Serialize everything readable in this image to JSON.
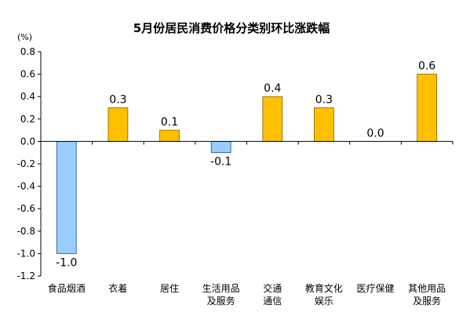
{
  "chart_data": {
    "type": "bar",
    "title": "5月份居民消费价格分类别环比涨跌幅",
    "ylabel": "(%)",
    "xlabel": "",
    "ylim": [
      -1.2,
      0.8
    ],
    "ytick_step": 0.2,
    "y_ticks": [
      "0.8",
      "0.6",
      "0.4",
      "0.2",
      "0.0",
      "-0.2",
      "-0.4",
      "-0.6",
      "-0.8",
      "-1.0",
      "-1.2"
    ],
    "grid": false,
    "legend": "none",
    "categories": [
      [
        "食品烟酒"
      ],
      [
        "衣着"
      ],
      [
        "居住"
      ],
      [
        "生活用品",
        "及服务"
      ],
      [
        "交通",
        "通信"
      ],
      [
        "教育文化",
        "娱乐"
      ],
      [
        "医疗保健"
      ],
      [
        "其他用品",
        "及服务"
      ]
    ],
    "values": [
      -1.0,
      0.3,
      0.1,
      -0.1,
      0.4,
      0.3,
      0.0,
      0.6
    ],
    "value_labels": [
      "-1.0",
      "0.3",
      "0.1",
      "-0.1",
      "0.4",
      "0.3",
      "0.0",
      "0.6"
    ],
    "colors": {
      "positive_fill": "#FFC000",
      "positive_stroke": "#7F6000",
      "negative_fill": "#99CCFF",
      "negative_stroke": "#1F4E79",
      "axis": "#000000"
    }
  }
}
